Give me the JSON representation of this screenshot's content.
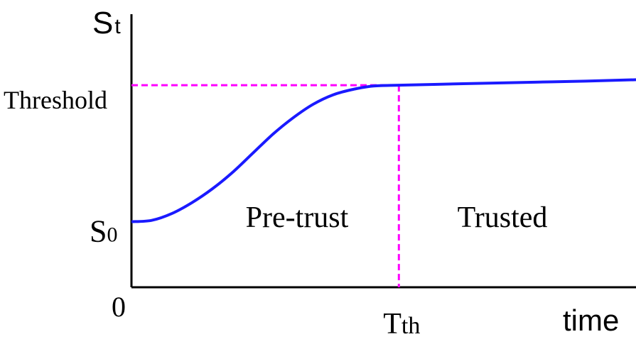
{
  "chart_data": {
    "type": "line",
    "colors": {
      "curve": "#1a1aff",
      "guide": "#ff00ff",
      "axis": "#000000"
    },
    "y_axis_label": {
      "main": "S",
      "sub": "t"
    },
    "x_axis_label": "time",
    "origin_label": "0",
    "y_ticks": {
      "threshold": "Threshold",
      "s0_main": "S",
      "s0_sub": "0"
    },
    "x_ticks": {
      "tth_main": "T",
      "tth_sub": "th"
    },
    "regions": {
      "pre_trust": "Pre-trust",
      "trusted": "Trusted"
    },
    "values": {
      "s0": 0.24,
      "threshold": 0.74,
      "t_th": 0.53,
      "final_level": 0.76,
      "x_range": [
        0,
        1
      ],
      "y_range": [
        0,
        1
      ]
    },
    "series": [
      {
        "points": [
          [
            0.0,
            0.24
          ],
          [
            0.04,
            0.245
          ],
          [
            0.08,
            0.27
          ],
          [
            0.12,
            0.31
          ],
          [
            0.16,
            0.36
          ],
          [
            0.2,
            0.42
          ],
          [
            0.24,
            0.49
          ],
          [
            0.28,
            0.56
          ],
          [
            0.32,
            0.62
          ],
          [
            0.36,
            0.67
          ],
          [
            0.4,
            0.705
          ],
          [
            0.44,
            0.725
          ],
          [
            0.48,
            0.737
          ],
          [
            0.53,
            0.74
          ],
          [
            0.6,
            0.743
          ],
          [
            0.7,
            0.747
          ],
          [
            0.8,
            0.751
          ],
          [
            0.9,
            0.755
          ],
          [
            1.0,
            0.76
          ]
        ]
      }
    ],
    "grid": false,
    "legend": "none"
  }
}
